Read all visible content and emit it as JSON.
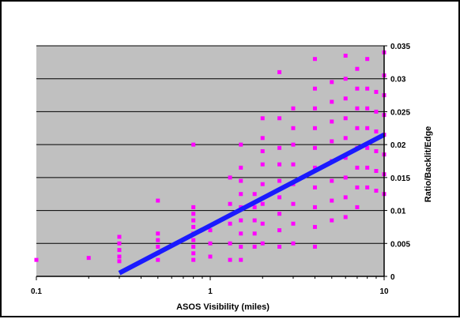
{
  "chart_data": {
    "type": "scatter",
    "title": "",
    "xlabel": "ASOS Visibility (miles)",
    "ylabel": "Ratio/Backlit/Edge",
    "x_scale": "log",
    "xlim": [
      0.1,
      10
    ],
    "ylim": [
      0,
      0.035
    ],
    "x_ticks": [
      "0.1",
      "1",
      "10"
    ],
    "y_ticks": [
      "0",
      "0.005",
      "0.01",
      "0.015",
      "0.02",
      "0.025",
      "0.03",
      "0.035"
    ],
    "grid": "horizontal",
    "colors": {
      "plot_bg": "#c0c0c0",
      "points": "#ff00ff",
      "trend": "#1a1aff",
      "grid": "#000000"
    },
    "trendline": {
      "x": [
        0.3,
        10
      ],
      "y": [
        0.0005,
        0.0215
      ]
    },
    "series": [
      {
        "points": [
          [
            0.1,
            0.0025
          ],
          [
            0.2,
            0.0028
          ],
          [
            0.3,
            0.0023
          ],
          [
            0.3,
            0.003
          ],
          [
            0.3,
            0.004
          ],
          [
            0.3,
            0.005
          ],
          [
            0.3,
            0.006
          ],
          [
            0.5,
            0.0025
          ],
          [
            0.5,
            0.0035
          ],
          [
            0.5,
            0.0045
          ],
          [
            0.5,
            0.0055
          ],
          [
            0.5,
            0.0065
          ],
          [
            0.5,
            0.0115
          ],
          [
            0.8,
            0.0025
          ],
          [
            0.8,
            0.0035
          ],
          [
            0.8,
            0.0045
          ],
          [
            0.8,
            0.0055
          ],
          [
            0.8,
            0.0065
          ],
          [
            0.8,
            0.0075
          ],
          [
            0.8,
            0.0085
          ],
          [
            0.8,
            0.0095
          ],
          [
            0.8,
            0.0105
          ],
          [
            0.8,
            0.02
          ],
          [
            1.0,
            0.003
          ],
          [
            1.0,
            0.005
          ],
          [
            1.0,
            0.007
          ],
          [
            1.3,
            0.0025
          ],
          [
            1.3,
            0.005
          ],
          [
            1.3,
            0.008
          ],
          [
            1.3,
            0.011
          ],
          [
            1.3,
            0.015
          ],
          [
            1.5,
            0.0025
          ],
          [
            1.5,
            0.0045
          ],
          [
            1.5,
            0.0065
          ],
          [
            1.5,
            0.0085
          ],
          [
            1.5,
            0.0105
          ],
          [
            1.5,
            0.0125
          ],
          [
            1.5,
            0.0145
          ],
          [
            1.5,
            0.0165
          ],
          [
            1.5,
            0.02
          ],
          [
            1.8,
            0.0045
          ],
          [
            1.8,
            0.0065
          ],
          [
            1.8,
            0.0085
          ],
          [
            1.8,
            0.0105
          ],
          [
            1.8,
            0.0125
          ],
          [
            2.0,
            0.005
          ],
          [
            2.0,
            0.008
          ],
          [
            2.0,
            0.011
          ],
          [
            2.0,
            0.014
          ],
          [
            2.0,
            0.017
          ],
          [
            2.0,
            0.019
          ],
          [
            2.0,
            0.021
          ],
          [
            2.0,
            0.024
          ],
          [
            2.5,
            0.0045
          ],
          [
            2.5,
            0.007
          ],
          [
            2.5,
            0.0095
          ],
          [
            2.5,
            0.012
          ],
          [
            2.5,
            0.0145
          ],
          [
            2.5,
            0.017
          ],
          [
            2.5,
            0.0195
          ],
          [
            2.5,
            0.024
          ],
          [
            2.5,
            0.031
          ],
          [
            3.0,
            0.005
          ],
          [
            3.0,
            0.008
          ],
          [
            3.0,
            0.011
          ],
          [
            3.0,
            0.014
          ],
          [
            3.0,
            0.017
          ],
          [
            3.0,
            0.02
          ],
          [
            3.0,
            0.0225
          ],
          [
            3.0,
            0.0255
          ],
          [
            4.0,
            0.0045
          ],
          [
            4.0,
            0.0075
          ],
          [
            4.0,
            0.0105
          ],
          [
            4.0,
            0.0135
          ],
          [
            4.0,
            0.0165
          ],
          [
            4.0,
            0.0195
          ],
          [
            4.0,
            0.0225
          ],
          [
            4.0,
            0.0255
          ],
          [
            4.0,
            0.0285
          ],
          [
            4.0,
            0.033
          ],
          [
            5.0,
            0.0085
          ],
          [
            5.0,
            0.0115
          ],
          [
            5.0,
            0.0145
          ],
          [
            5.0,
            0.0175
          ],
          [
            5.0,
            0.0205
          ],
          [
            5.0,
            0.0235
          ],
          [
            5.0,
            0.0265
          ],
          [
            5.0,
            0.0295
          ],
          [
            6.0,
            0.009
          ],
          [
            6.0,
            0.012
          ],
          [
            6.0,
            0.015
          ],
          [
            6.0,
            0.018
          ],
          [
            6.0,
            0.021
          ],
          [
            6.0,
            0.024
          ],
          [
            6.0,
            0.027
          ],
          [
            6.0,
            0.03
          ],
          [
            6.0,
            0.0335
          ],
          [
            7.0,
            0.0105
          ],
          [
            7.0,
            0.0135
          ],
          [
            7.0,
            0.0165
          ],
          [
            7.0,
            0.0195
          ],
          [
            7.0,
            0.0225
          ],
          [
            7.0,
            0.0255
          ],
          [
            7.0,
            0.0285
          ],
          [
            7.0,
            0.0315
          ],
          [
            8.0,
            0.0135
          ],
          [
            8.0,
            0.0165
          ],
          [
            8.0,
            0.0195
          ],
          [
            8.0,
            0.0225
          ],
          [
            8.0,
            0.0255
          ],
          [
            8.0,
            0.0285
          ],
          [
            8.0,
            0.033
          ],
          [
            9.0,
            0.013
          ],
          [
            9.0,
            0.016
          ],
          [
            9.0,
            0.019
          ],
          [
            9.0,
            0.022
          ],
          [
            9.0,
            0.025
          ],
          [
            9.0,
            0.028
          ],
          [
            10.0,
            0.0125
          ],
          [
            10.0,
            0.0155
          ],
          [
            10.0,
            0.0185
          ],
          [
            10.0,
            0.0215
          ],
          [
            10.0,
            0.0245
          ],
          [
            10.0,
            0.0275
          ],
          [
            10.0,
            0.0305
          ],
          [
            10.0,
            0.034
          ]
        ]
      }
    ]
  }
}
